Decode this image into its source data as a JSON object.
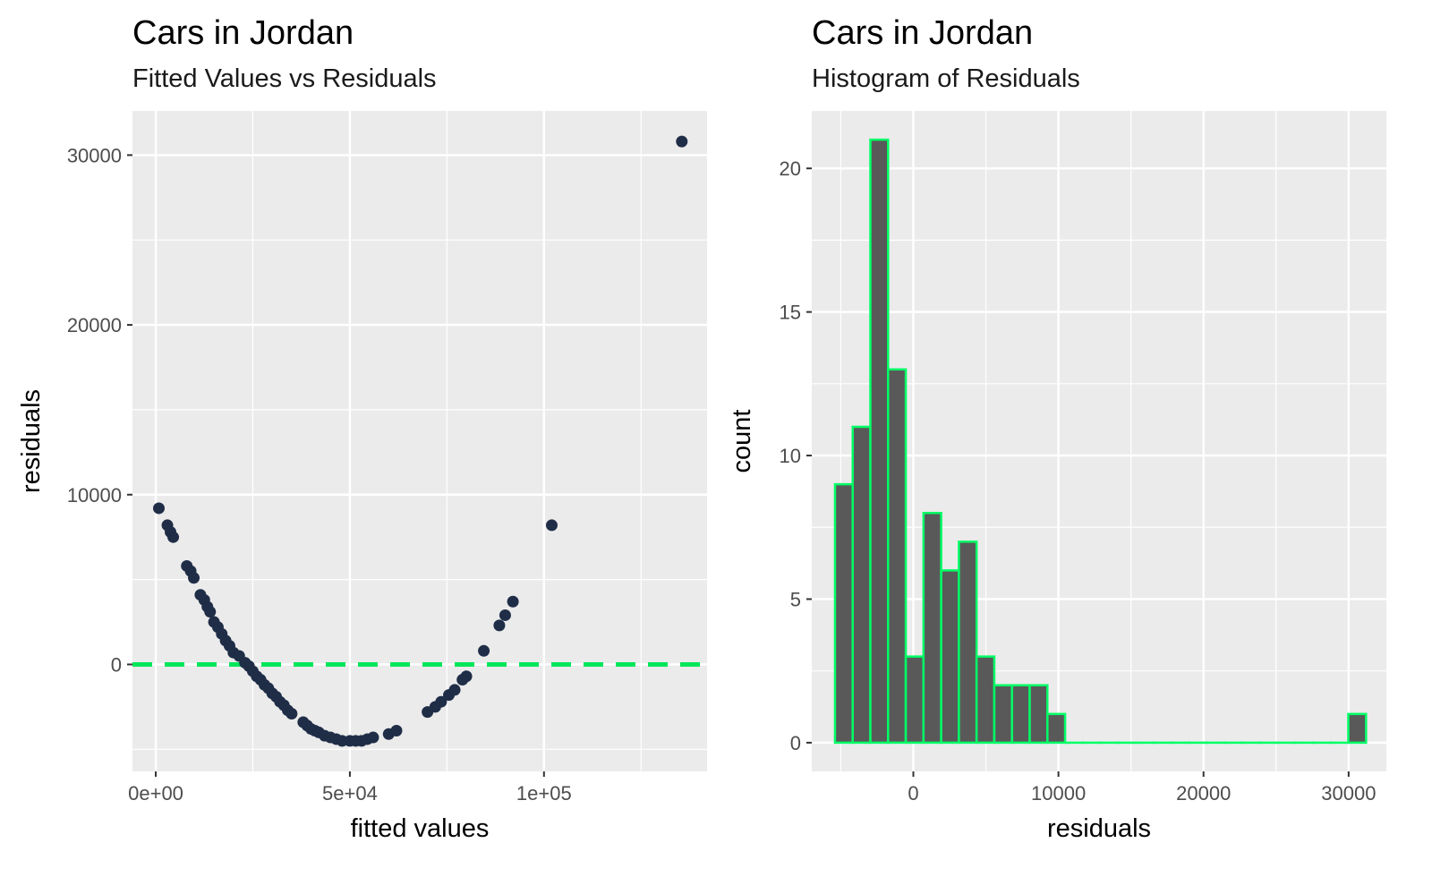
{
  "charts": [
    {
      "title": "Cars in Jordan",
      "subtitle": "Fitted Values vs Residuals"
    },
    {
      "title": "Cars in Jordan",
      "subtitle": "Histogram of Residuals"
    }
  ],
  "chart_data": [
    {
      "type": "scatter",
      "title": "Cars in Jordan",
      "subtitle": "Fitted Values vs Residuals",
      "xlabel": "fitted values",
      "ylabel": "residuals",
      "xlim": [
        -6000,
        142000
      ],
      "ylim": [
        -6300,
        32600
      ],
      "x_ticks": [
        0,
        50000,
        100000
      ],
      "x_tick_labels": [
        "0e+00",
        "5e+04",
        "1e+05"
      ],
      "y_ticks": [
        0,
        10000,
        20000,
        30000
      ],
      "y_tick_labels": [
        "0",
        "10000",
        "20000",
        "30000"
      ],
      "grid": true,
      "point_color": "#1f2d47",
      "reference_line": {
        "y": 0,
        "style": "dashed",
        "color": "#00e65a"
      },
      "points": [
        [
          800,
          9200
        ],
        [
          3000,
          8200
        ],
        [
          3800,
          7800
        ],
        [
          4500,
          7500
        ],
        [
          8000,
          5800
        ],
        [
          9000,
          5500
        ],
        [
          9800,
          5100
        ],
        [
          11500,
          4100
        ],
        [
          12500,
          3800
        ],
        [
          13300,
          3400
        ],
        [
          14000,
          3100
        ],
        [
          15000,
          2500
        ],
        [
          16000,
          2200
        ],
        [
          17000,
          1800
        ],
        [
          18000,
          1400
        ],
        [
          19000,
          1100
        ],
        [
          20000,
          700
        ],
        [
          21500,
          500
        ],
        [
          23000,
          100
        ],
        [
          24000,
          -100
        ],
        [
          25000,
          -400
        ],
        [
          26000,
          -700
        ],
        [
          27000,
          -900
        ],
        [
          28000,
          -1200
        ],
        [
          29000,
          -1400
        ],
        [
          30000,
          -1700
        ],
        [
          31000,
          -1900
        ],
        [
          32000,
          -2200
        ],
        [
          33000,
          -2400
        ],
        [
          34000,
          -2700
        ],
        [
          35000,
          -2900
        ],
        [
          38000,
          -3400
        ],
        [
          39000,
          -3600
        ],
        [
          40000,
          -3800
        ],
        [
          41000,
          -3900
        ],
        [
          42000,
          -4000
        ],
        [
          43500,
          -4200
        ],
        [
          45000,
          -4300
        ],
        [
          46500,
          -4400
        ],
        [
          48000,
          -4500
        ],
        [
          50000,
          -4500
        ],
        [
          51500,
          -4500
        ],
        [
          53000,
          -4500
        ],
        [
          54500,
          -4400
        ],
        [
          56000,
          -4300
        ],
        [
          60000,
          -4100
        ],
        [
          62000,
          -3900
        ],
        [
          70000,
          -2800
        ],
        [
          72000,
          -2500
        ],
        [
          73500,
          -2200
        ],
        [
          75500,
          -1800
        ],
        [
          77000,
          -1500
        ],
        [
          79000,
          -900
        ],
        [
          80000,
          -700
        ],
        [
          84500,
          800
        ],
        [
          88500,
          2300
        ],
        [
          90000,
          2900
        ],
        [
          92000,
          3700
        ],
        [
          102000,
          8200
        ],
        [
          135500,
          30800
        ]
      ]
    },
    {
      "type": "bar",
      "subtype": "histogram",
      "title": "Cars in Jordan",
      "subtitle": "Histogram of Residuals",
      "xlabel": "residuals",
      "ylabel": "count",
      "xlim": [
        -7000,
        32600
      ],
      "ylim": [
        -1,
        22
      ],
      "x_ticks": [
        0,
        10000,
        20000,
        30000
      ],
      "x_tick_labels": [
        "0",
        "10000",
        "20000",
        "30000"
      ],
      "y_ticks": [
        0,
        5,
        10,
        15,
        20
      ],
      "y_tick_labels": [
        "0",
        "5",
        "10",
        "15",
        "20"
      ],
      "grid": true,
      "fill_color": "#595959",
      "outline_color": "#00ff66",
      "bin_start": -5400,
      "bin_width": 1220,
      "counts": [
        9,
        11,
        21,
        13,
        3,
        8,
        6,
        7,
        3,
        2,
        2,
        2,
        1,
        0,
        0,
        0,
        0,
        0,
        0,
        0,
        0,
        0,
        0,
        0,
        0,
        0,
        0,
        0,
        0,
        1
      ]
    }
  ]
}
